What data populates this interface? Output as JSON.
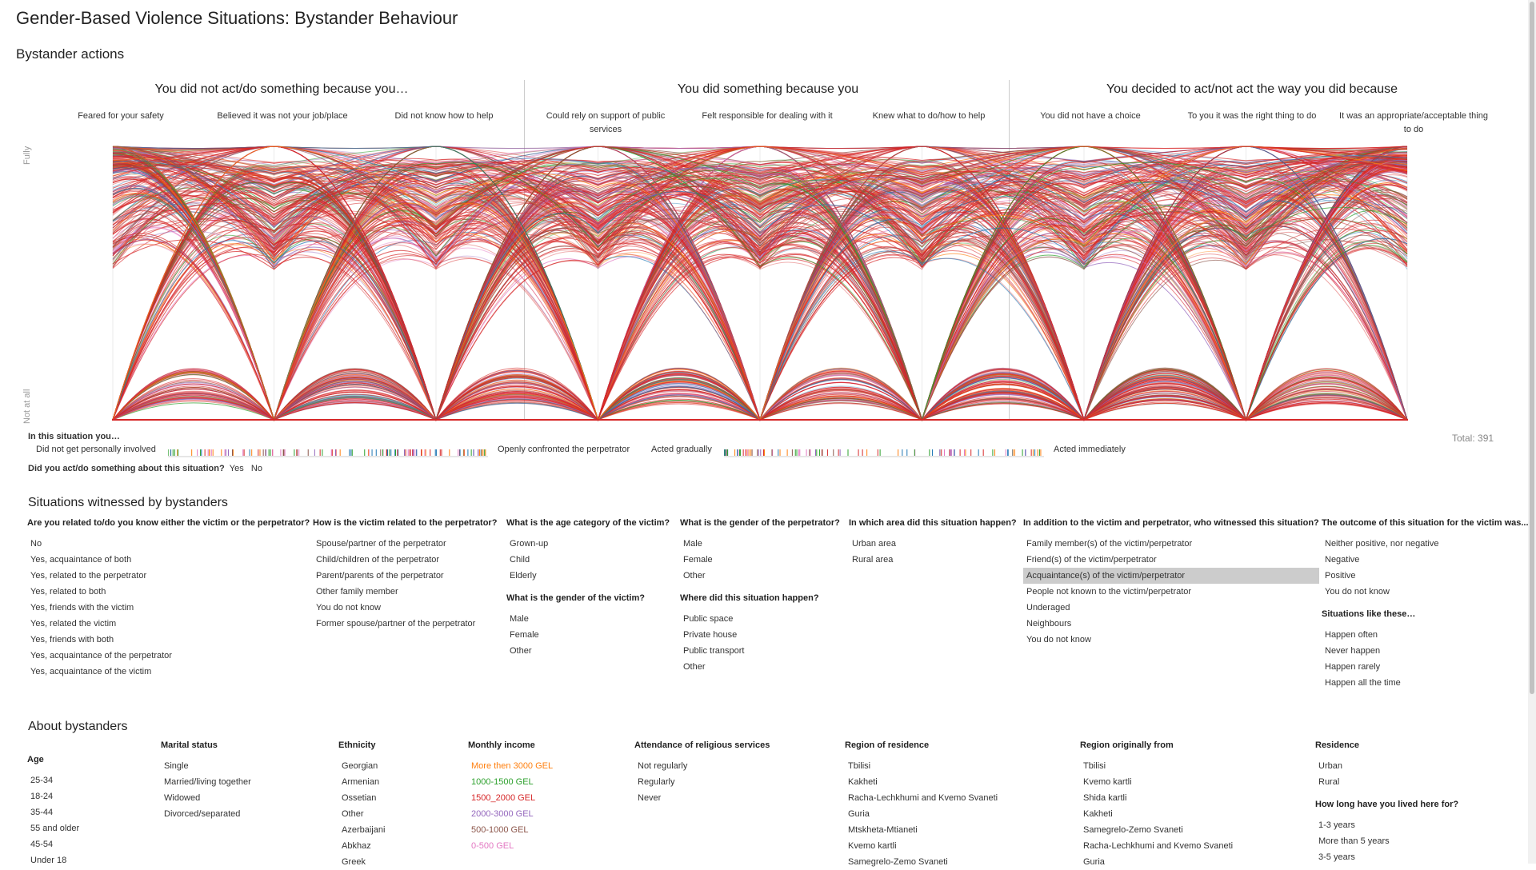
{
  "page": {
    "title": "Gender-Based Violence Situations: Bystander Behaviour"
  },
  "actions": {
    "section_title": "Bystander actions",
    "axis_top": "Fully",
    "axis_bottom": "Not at all",
    "groups": [
      {
        "title": "You did not act/do something because you…",
        "questions": [
          "Feared for your safety",
          "Believed it was not your job/place",
          "Did not know how to help"
        ]
      },
      {
        "title": "You did something because you",
        "questions": [
          "Could rely on support of public services",
          "Felt responsible for dealing with it",
          "Knew what to do/how to help"
        ]
      },
      {
        "title": "You decided to act/not act the way you did because",
        "questions": [
          "You did not have a choice",
          "To you it was the right thing to do",
          "It was an appropriate/acceptable thing to do"
        ]
      }
    ],
    "in_situation_label": "In this situation you…",
    "scale1_left": "Did not get personally involved",
    "scale1_right": "Openly confronted the perpetrator",
    "scale2_left": "Acted gradually",
    "scale2_right": "Acted immediately",
    "did_act_question": "Did you act/do something about this situation?",
    "did_act_yes": "Yes",
    "did_act_no": "No",
    "total": "Total: 391"
  },
  "chart_data": {
    "type": "line",
    "subtype": "parallel-coordinates",
    "dimensions": [
      "Feared for your safety",
      "Believed it was not your job/place",
      "Did not know how to help",
      "Could rely on support of public services",
      "Felt responsible for dealing with it",
      "Knew what to do/how to help",
      "You did not have a choice",
      "To you it was the right thing to do",
      "It was an appropriate/acceptable thing to do"
    ],
    "y_scale": [
      "Not at all",
      "Fully"
    ],
    "n_records": 391,
    "colors": [
      "#d62728",
      "#1f77b4",
      "#2ca02c",
      "#ff7f0e",
      "#9467bd",
      "#e377c2",
      "#8c564b"
    ]
  },
  "situations": {
    "section_title": "Situations witnessed by bystanders",
    "columns": [
      {
        "header": "Are you related to/do you know either the victim or the perpetrator?",
        "options": [
          "No",
          "Yes, acquaintance of both",
          "Yes, related to the perpetrator",
          "Yes, related to both",
          "Yes, friends with the victim",
          "Yes, related the victim",
          "Yes, friends with both",
          "Yes, acquaintance of the perpetrator",
          "Yes, acquaintance of the victim"
        ]
      },
      {
        "header": "How is the victim related to the perpetrator?",
        "options": [
          "Spouse/partner of the perpetrator",
          "Child/children of the perpetrator",
          "Parent/parents of the perpetrator",
          "Other family member",
          "You do not know",
          "Former spouse/partner of the perpetrator"
        ]
      },
      {
        "header": "What is the age category of the victim?",
        "options": [
          "Grown-up",
          "Child",
          "Elderly"
        ],
        "sub_header": "What is the gender of the victim?",
        "sub_options": [
          "Male",
          "Female",
          "Other"
        ]
      },
      {
        "header": "What is the gender of the perpetrator?",
        "options": [
          "Male",
          "Female",
          "Other"
        ],
        "sub_header": "Where did this situation happen?",
        "sub_options": [
          "Public space",
          "Private house",
          "Public transport",
          "Other"
        ]
      },
      {
        "header": "In which area did this situation happen?",
        "options": [
          "Urban area",
          "Rural area"
        ]
      },
      {
        "header": "In addition to the victim and perpetrator, who witnessed this situation?",
        "options": [
          "Family member(s) of the victim/perpetrator",
          "Friend(s) of the victim/perpetrator",
          "Acquaintance(s) of the victim/perpetrator",
          "People not known to the victim/perpetrator",
          "Underaged",
          "Neighbours",
          "You do not know"
        ],
        "selected": 2
      },
      {
        "header": "The outcome of this situation for the victim was...",
        "options": [
          "Neither positive, nor negative",
          "Negative",
          "Positive",
          "You do not know"
        ],
        "sub_header": "Situations like these…",
        "sub_options": [
          "Happen often",
          "Never happen",
          "Happen rarely",
          "Happen all the time"
        ]
      }
    ]
  },
  "bystanders": {
    "section_title": "About bystanders",
    "columns": [
      {
        "header": "Age",
        "options": [
          "25-34",
          "18-24",
          "35-44",
          "55 and older",
          "45-54",
          "Under 18"
        ]
      },
      {
        "header": "Marital status",
        "options": [
          "Single",
          "Married/living together",
          "Widowed",
          "Divorced/separated"
        ]
      },
      {
        "header": "Ethnicity",
        "options": [
          "Georgian",
          "Armenian",
          "Ossetian",
          "Other",
          "Azerbaijani",
          "Abkhaz",
          "Greek"
        ]
      },
      {
        "header": "Monthly income",
        "options": [
          "More then 3000 GEL",
          "1000-1500 GEL",
          "1500_2000 GEL",
          "2000-3000 GEL",
          "500-1000 GEL",
          "0-500 GEL"
        ],
        "colors": [
          "#ff7f0e",
          "#2ca02c",
          "#d62728",
          "#9467bd",
          "#8c564b",
          "#e377c2"
        ]
      },
      {
        "header": "Attendance of religious services",
        "options": [
          "Not regularly",
          "Regularly",
          "Never"
        ]
      },
      {
        "header": "Region of residence",
        "options": [
          "Tbilisi",
          "Kakheti",
          "Racha-Lechkhumi and Kvemo Svaneti",
          "Guria",
          "Mtskheta-Mtianeti",
          "Kvemo kartli",
          "Samegrelo-Zemo Svaneti"
        ]
      },
      {
        "header": "Region originally from",
        "options": [
          "Tbilisi",
          "Kvemo kartli",
          "Shida kartli",
          "Kakheti",
          "Samegrelo-Zemo Svaneti",
          "Racha-Lechkhumi and Kvemo Svaneti",
          "Guria"
        ]
      },
      {
        "header": "Residence",
        "options": [
          "Urban",
          "Rural"
        ],
        "sub_header": "How long have you lived here for?",
        "sub_options": [
          "1-3 years",
          "More than 5 years",
          "3-5 years"
        ]
      }
    ]
  }
}
